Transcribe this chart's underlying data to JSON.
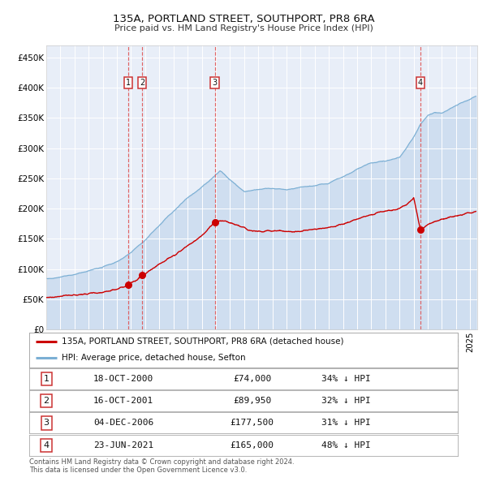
{
  "title": "135A, PORTLAND STREET, SOUTHPORT, PR8 6RA",
  "subtitle": "Price paid vs. HM Land Registry's House Price Index (HPI)",
  "footer": "Contains HM Land Registry data © Crown copyright and database right 2024.\nThis data is licensed under the Open Government Licence v3.0.",
  "legend_red": "135A, PORTLAND STREET, SOUTHPORT, PR8 6RA (detached house)",
  "legend_blue": "HPI: Average price, detached house, Sefton",
  "table_data": [
    [
      "1",
      "18-OCT-2000",
      "£74,000",
      "34% ↓ HPI"
    ],
    [
      "2",
      "16-OCT-2001",
      "£89,950",
      "32% ↓ HPI"
    ],
    [
      "3",
      "04-DEC-2006",
      "£177,500",
      "31% ↓ HPI"
    ],
    [
      "4",
      "23-JUN-2021",
      "£165,000",
      "48% ↓ HPI"
    ]
  ],
  "trans_years": [
    2000.8,
    2001.79,
    2006.92,
    2021.48
  ],
  "trans_prices": [
    74000,
    89950,
    177500,
    165000
  ],
  "ylim": [
    0,
    470000
  ],
  "yticks": [
    0,
    50000,
    100000,
    150000,
    200000,
    250000,
    300000,
    350000,
    400000,
    450000
  ],
  "ytick_labels": [
    "£0",
    "£50K",
    "£100K",
    "£150K",
    "£200K",
    "£250K",
    "£300K",
    "£350K",
    "£400K",
    "£450K"
  ],
  "xlim_start": 1995.0,
  "xlim_end": 2025.5,
  "xticks": [
    1995,
    1996,
    1997,
    1998,
    1999,
    2000,
    2001,
    2002,
    2003,
    2004,
    2005,
    2006,
    2007,
    2008,
    2009,
    2010,
    2011,
    2012,
    2013,
    2014,
    2015,
    2016,
    2017,
    2018,
    2019,
    2020,
    2021,
    2022,
    2023,
    2024,
    2025
  ],
  "background_color": "#e8eef8",
  "grid_color": "#ffffff",
  "red_color": "#cc0000",
  "blue_color": "#7bafd4",
  "blue_fill_color": "#c5d8ed",
  "dashed_color": "#e05555",
  "box_edge_color": "#cc3333",
  "title_fontsize": 9.5,
  "subtitle_fontsize": 8.0,
  "axis_fontsize": 7.5,
  "table_fontsize": 8.0,
  "footer_fontsize": 6.0
}
